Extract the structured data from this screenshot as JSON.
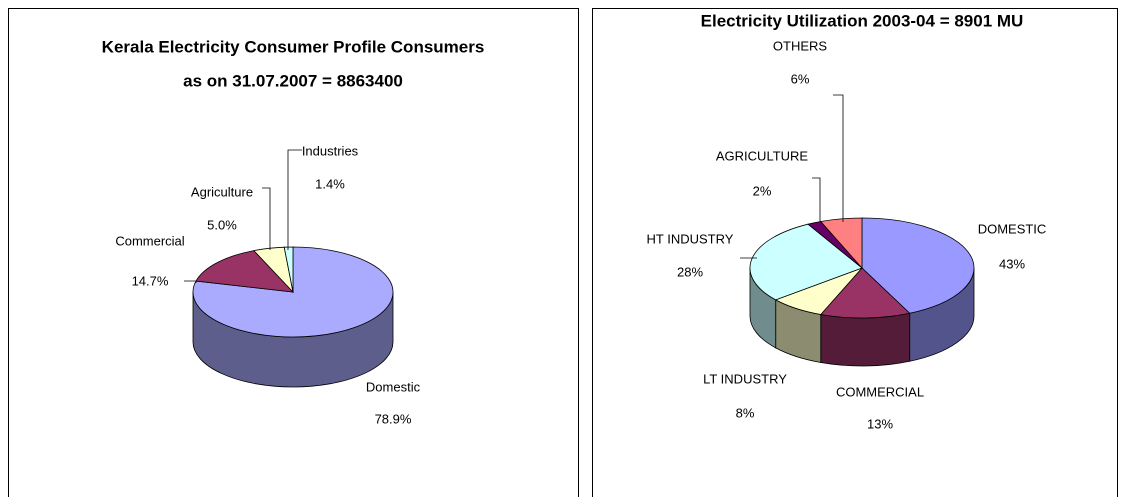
{
  "chart_data": [
    {
      "type": "pie",
      "title": [
        "Kerala Electricity Consumer Profile Consumers",
        "as on 31.07.2007 = 8863400"
      ],
      "categories": [
        "Domestic",
        "Commercial",
        "Agriculture",
        "Industries"
      ],
      "values": [
        78.9,
        14.7,
        5.0,
        1.4
      ],
      "value_labels": [
        "78.9%",
        "14.7%",
        "5.0%",
        "1.4%"
      ],
      "colors": [
        "#aaaaff",
        "#993366",
        "#ffffcc",
        "#ccffff"
      ]
    },
    {
      "type": "pie",
      "title": [
        "Electricity Utilization 2003-04 = 8901 MU"
      ],
      "categories": [
        "DOMESTIC",
        "COMMERCIAL",
        "LT INDUSTRY",
        "HT INDUSTRY",
        "AGRICULTURE",
        "OTHERS"
      ],
      "values": [
        43,
        13,
        8,
        28,
        2,
        6
      ],
      "value_labels": [
        "43%",
        "13%",
        "8%",
        "28%",
        "2%",
        "6%"
      ],
      "colors": [
        "#9999ff",
        "#993366",
        "#ffffcc",
        "#ccffff",
        "#660066",
        "#ff8080"
      ]
    }
  ]
}
